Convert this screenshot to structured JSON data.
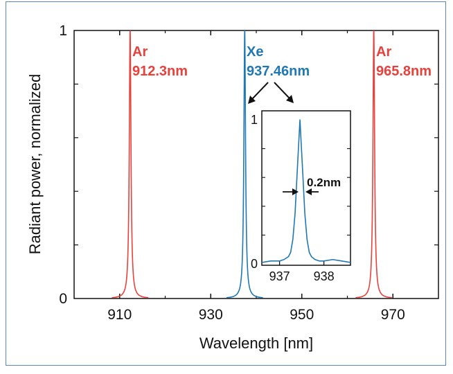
{
  "colors": {
    "argon": "#e8413c",
    "xenon": "#1f78b4",
    "frame": "#5a86b8",
    "axis": "#111111"
  },
  "chart_data": [
    {
      "type": "line",
      "title": "",
      "xlabel": "Wavelength [nm]",
      "ylabel": "Radiant power, normalized",
      "xlim": [
        900,
        980
      ],
      "ylim": [
        0,
        1
      ],
      "x_ticks": [
        910,
        930,
        950,
        970
      ],
      "y_ticks": [
        0,
        1
      ],
      "grid": false,
      "series": [
        {
          "peak_nm": 912.3,
          "peak_value": 1,
          "color": "argon"
        },
        {
          "peak_nm": 937.46,
          "peak_value": 1,
          "color": "xenon"
        },
        {
          "peak_nm": 965.8,
          "peak_value": 1,
          "color": "argon"
        }
      ],
      "annotations": [
        {
          "element": "Ar",
          "wavelength": "912.3nm",
          "color": "argon"
        },
        {
          "element": "Xe",
          "wavelength": "937.46nm",
          "color": "xenon"
        },
        {
          "element": "Ar",
          "wavelength": "965.8nm",
          "color": "argon"
        }
      ]
    },
    {
      "type": "line",
      "title": "",
      "xlim": [
        936.6,
        938.6
      ],
      "ylim": [
        0,
        1
      ],
      "x_ticks": [
        937,
        938
      ],
      "y_ticks": [
        0,
        1
      ],
      "series": [
        {
          "color": "xenon",
          "x": [
            936.6,
            936.8,
            937.0,
            937.1,
            937.2,
            937.25,
            937.3,
            937.35,
            937.4,
            937.46,
            937.52,
            937.57,
            937.62,
            937.67,
            937.72,
            937.8,
            937.9,
            938.0,
            938.2,
            938.4,
            938.6
          ],
          "y": [
            0.01,
            0.02,
            0.02,
            0.03,
            0.05,
            0.08,
            0.17,
            0.35,
            0.65,
            1.0,
            0.65,
            0.35,
            0.17,
            0.08,
            0.05,
            0.03,
            0.02,
            0.02,
            0.03,
            0.02,
            0.01
          ]
        }
      ],
      "fwhm_label": "0.2nm"
    }
  ]
}
